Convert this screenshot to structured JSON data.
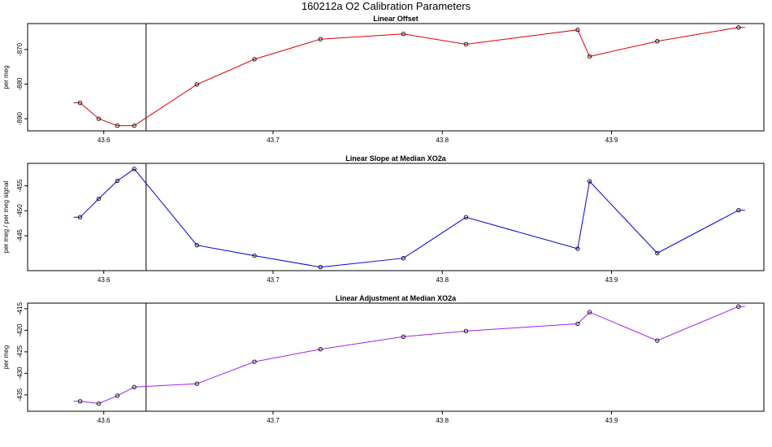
{
  "title": "160212a   O2 Calibration Parameters",
  "chart_data": [
    {
      "type": "line",
      "title": "Linear Offset",
      "ylabel": "per meg",
      "color": "#e00000",
      "x": [
        43.586,
        43.597,
        43.608,
        43.618,
        43.655,
        43.689,
        43.728,
        43.777,
        43.814,
        43.88,
        43.887,
        43.927,
        43.975
      ],
      "y": [
        -885.4,
        -890.0,
        -892.0,
        -892.0,
        -880.1,
        -872.8,
        -867.0,
        -865.5,
        -868.5,
        -864.3,
        -872.0,
        -867.6,
        -863.6
      ],
      "xlim": [
        43.555,
        43.99
      ],
      "ylim": [
        -893.5,
        -862.5
      ],
      "xticks": [
        43.6,
        43.7,
        43.8,
        43.9
      ],
      "xtick_labels": [
        "43.6",
        "43.7",
        "43.8",
        "43.9"
      ],
      "yticks": [
        -890,
        -880,
        -870
      ],
      "ytick_labels": [
        "-890",
        "-880",
        "-870"
      ],
      "vline": 43.625
    },
    {
      "type": "line",
      "title": "Linear Slope at Median XO2a",
      "ylabel": "per meg / per meg signal",
      "color": "#0000e0",
      "x": [
        43.586,
        43.597,
        43.608,
        43.618,
        43.655,
        43.689,
        43.728,
        43.777,
        43.814,
        43.88,
        43.887,
        43.927,
        43.975
      ],
      "y": [
        -448.7,
        -452.4,
        -456.0,
        -458.4,
        -443.1,
        -441.0,
        -438.7,
        -440.5,
        -448.7,
        -442.4,
        -455.9,
        -441.5,
        -450.1
      ],
      "xlim": [
        43.555,
        43.99
      ],
      "ylim": [
        -438.0,
        -459.5
      ],
      "xticks": [
        43.6,
        43.7,
        43.8,
        43.9
      ],
      "xtick_labels": [
        "43.6",
        "43.7",
        "43.8",
        "43.9"
      ],
      "yticks": [
        -445,
        -450,
        -455
      ],
      "ytick_labels": [
        "-445",
        "-450",
        "-455"
      ],
      "vline": 43.625
    },
    {
      "type": "line",
      "title": "Linear Adjustment at Median XO2a",
      "ylabel": "per meg",
      "color": "#a020f0",
      "x": [
        43.586,
        43.597,
        43.608,
        43.618,
        43.655,
        43.689,
        43.728,
        43.777,
        43.814,
        43.88,
        43.887,
        43.927,
        43.975
      ],
      "y": [
        -436.5,
        -437.0,
        -435.2,
        -433.2,
        -432.4,
        -427.3,
        -424.4,
        -421.5,
        -420.2,
        -418.5,
        -415.8,
        -422.4,
        -414.5
      ],
      "xlim": [
        43.555,
        43.99
      ],
      "ylim": [
        -438.8,
        -413.7
      ],
      "xticks": [
        43.6,
        43.7,
        43.8,
        43.9
      ],
      "xtick_labels": [
        "43.6",
        "43.7",
        "43.8",
        "43.9"
      ],
      "yticks": [
        -435,
        -430,
        -425,
        -420,
        -415
      ],
      "ytick_labels": [
        "-435",
        "-430",
        "-425",
        "-420",
        "-415"
      ],
      "vline": 43.625
    }
  ]
}
